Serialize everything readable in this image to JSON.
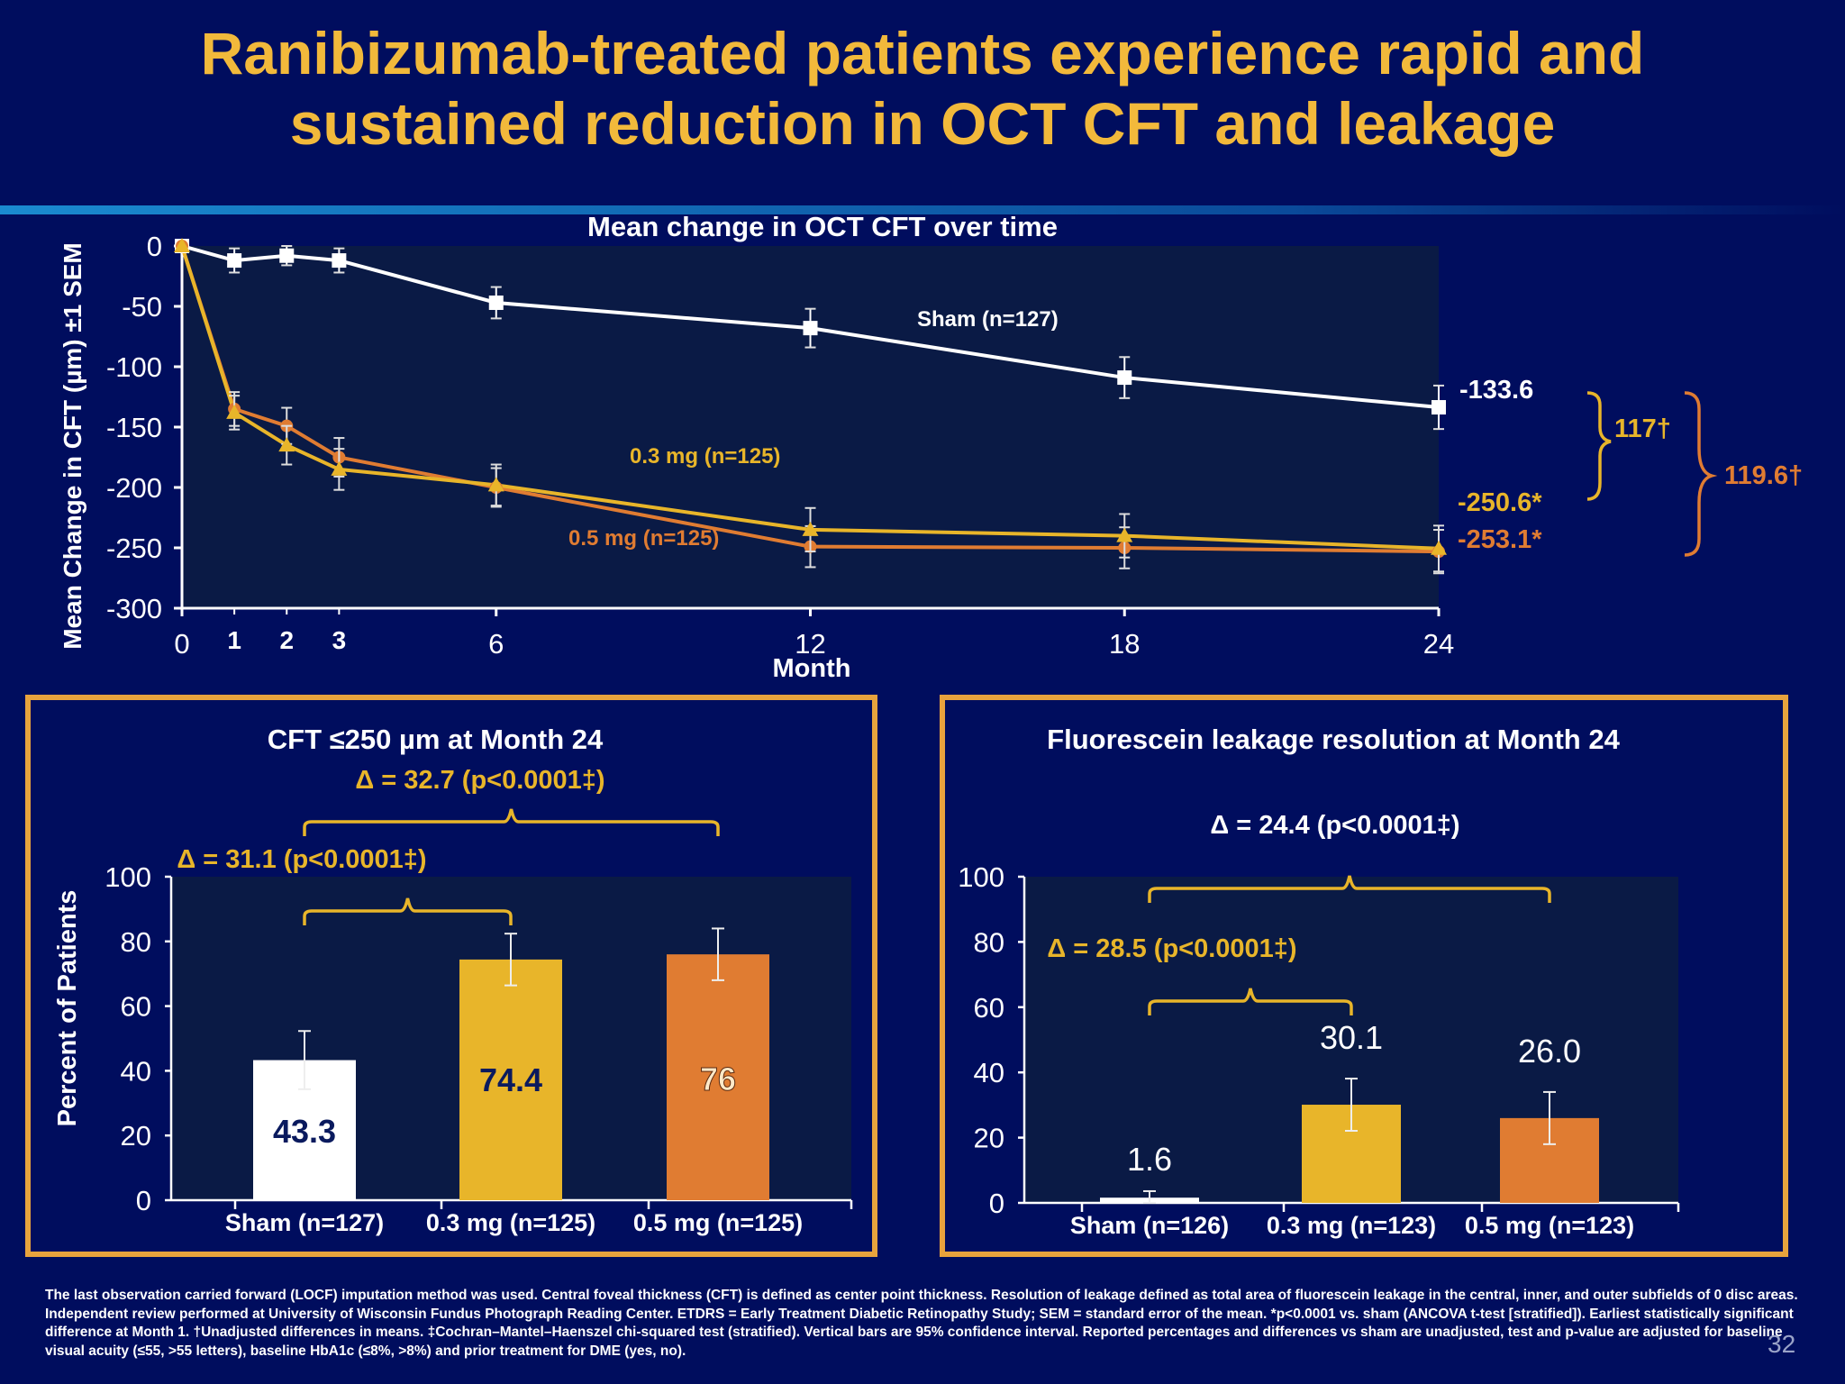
{
  "slide": {
    "title_line1": "Ranibizumab-treated patients experience rapid and",
    "title_line2": "sustained reduction in OCT CFT and leakage",
    "page_number": "32",
    "footnote": "The last observation carried forward (LOCF) imputation method was used. Central foveal thickness (CFT) is defined as center point thickness. Resolution of leakage defined as total area of fluorescein leakage in the central, inner, and outer subfields of 0 disc areas. Independent review performed at University of Wisconsin Fundus Photograph Reading Center. ETDRS = Early Treatment Diabetic Retinopathy Study; SEM = standard error of the mean. *p<0.0001 vs. sham (ANCOVA t-test [stratified]). Earliest statistically significant difference at Month 1. †Unadjusted differences in means. ‡Cochran–Mantel–Haenszel chi-squared test (stratified). Vertical bars are 95% confidence interval. Reported percentages and differences vs sham are unadjusted, test and p-value are adjusted for baseline visual acuity (≤55, >55 letters), baseline HbA1c (≤8%, >8%) and prior treatment for DME (yes, no).",
    "colors": {
      "background": "#000d5e",
      "title": "#f2b93b",
      "sham": "#ffffff",
      "mg03": "#e8b52a",
      "mg05": "#e07c32",
      "panel_border": "#e8a33d",
      "plot_bg": "#0a1a45"
    }
  },
  "chart_data": [
    {
      "type": "line",
      "title": "Mean change in OCT CFT over time",
      "xlabel": "Month",
      "ylabel": "Mean Change in CFT (µm) ±1 SEM",
      "xlim": [
        0,
        24
      ],
      "ylim": [
        -300,
        0
      ],
      "xticks": [
        0,
        6,
        12,
        18,
        24
      ],
      "xticks_minor": [
        1,
        2,
        3
      ],
      "yticks": [
        0,
        -50,
        -100,
        -150,
        -200,
        -250,
        -300
      ],
      "series": [
        {
          "name": "Sham (n=127)",
          "key": "sham",
          "color": "#ffffff",
          "marker": "square",
          "x": [
            0,
            1,
            2,
            3,
            6,
            12,
            18,
            24
          ],
          "y": [
            0,
            -12,
            -8,
            -12,
            -47,
            -68,
            -109,
            -133.6
          ],
          "err": [
            0,
            10,
            8,
            10,
            13,
            16,
            17,
            18
          ]
        },
        {
          "name": "0.3 mg (n=125)",
          "key": "mg03",
          "color": "#e8b52a",
          "marker": "triangle",
          "x": [
            0,
            1,
            2,
            3,
            6,
            12,
            18,
            24
          ],
          "y": [
            0,
            -138,
            -165,
            -185,
            -198,
            -235,
            -240,
            -250.6
          ],
          "err": [
            0,
            14,
            16,
            17,
            17,
            18,
            18,
            19
          ]
        },
        {
          "name": "0.5 mg (n=125)",
          "key": "mg05",
          "color": "#e07c32",
          "marker": "circle",
          "x": [
            0,
            1,
            2,
            3,
            6,
            12,
            18,
            24
          ],
          "y": [
            0,
            -135,
            -149,
            -175,
            -200,
            -249,
            -250,
            -253.1
          ],
          "err": [
            0,
            14,
            15,
            16,
            16,
            17,
            17,
            18
          ]
        }
      ],
      "series_labels": {
        "sham": "Sham (n=127)",
        "mg03": "0.3 mg (n=125)",
        "mg05": "0.5 mg (n=125)"
      },
      "end_labels": {
        "sham": "-133.6",
        "mg03": "-250.6*",
        "mg05": "-253.1*"
      },
      "differences": {
        "sham_vs_03": "117†",
        "sham_vs_05": "119.6†"
      }
    },
    {
      "type": "bar",
      "title": "CFT ≤250 µm at Month 24",
      "ylabel": "Percent of Patients",
      "ylim": [
        0,
        100
      ],
      "yticks": [
        0,
        20,
        40,
        60,
        80,
        100
      ],
      "categories": [
        "Sham (n=127)",
        "0.3 mg (n=125)",
        "0.5 mg (n=125)"
      ],
      "values": [
        43.3,
        74.4,
        76
      ],
      "value_labels": [
        "43.3",
        "74.4",
        "76"
      ],
      "err": [
        9,
        8,
        8
      ],
      "colors": [
        "#ffffff",
        "#e8b52a",
        "#e07c32"
      ],
      "comparisons": [
        {
          "label": "Δ = 31.1 (p<0.0001‡)",
          "from": 0,
          "to": 1
        },
        {
          "label": "Δ = 32.7 (p<0.0001‡)",
          "from": 0,
          "to": 2
        }
      ]
    },
    {
      "type": "bar",
      "title": "Fluorescein leakage resolution at Month 24",
      "ylim": [
        0,
        100
      ],
      "yticks": [
        0,
        20,
        40,
        60,
        80,
        100
      ],
      "categories": [
        "Sham (n=126)",
        "0.3 mg (n=123)",
        "0.5 mg (n=123)"
      ],
      "values": [
        1.6,
        30.1,
        26.0
      ],
      "value_labels": [
        "1.6",
        "30.1",
        "26.0"
      ],
      "err": [
        2,
        8,
        8
      ],
      "colors": [
        "#ffffff",
        "#e8b52a",
        "#e07c32"
      ],
      "comparisons": [
        {
          "label": "Δ = 28.5 (p<0.0001‡)",
          "from": 0,
          "to": 1
        },
        {
          "label": "Δ = 24.4 (p<0.0001‡)",
          "from": 0,
          "to": 2
        }
      ]
    }
  ]
}
